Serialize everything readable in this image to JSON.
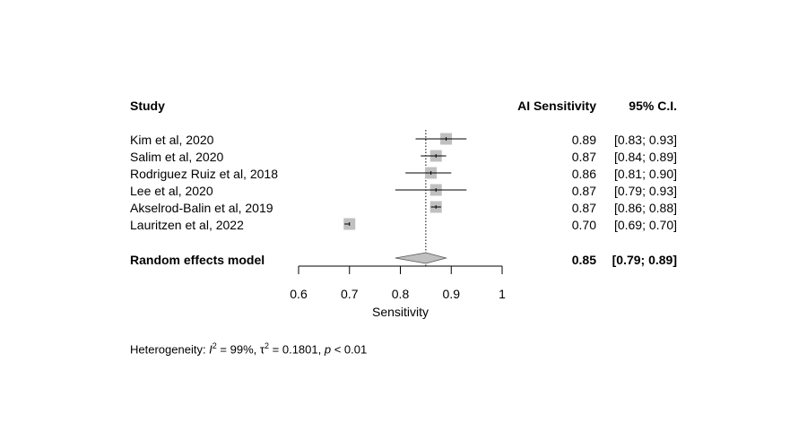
{
  "header": {
    "study_label": "Study",
    "estimate_label": "AI Sensitivity",
    "ci_label": "95% C.I."
  },
  "studies": [
    {
      "name": "Kim et al, 2020",
      "estimate_text": "0.89",
      "ci_text": "[0.83; 0.93]"
    },
    {
      "name": "Salim et al, 2020",
      "estimate_text": "0.87",
      "ci_text": "[0.84; 0.89]"
    },
    {
      "name": "Rodriguez Ruiz et al, 2018",
      "estimate_text": "0.86",
      "ci_text": "[0.81; 0.90]"
    },
    {
      "name": "Lee et al, 2020",
      "estimate_text": "0.87",
      "ci_text": "[0.79; 0.93]"
    },
    {
      "name": "Akselrod-Balin et al, 2019",
      "estimate_text": "0.87",
      "ci_text": "[0.86; 0.88]"
    },
    {
      "name": "Lauritzen et al, 2022",
      "estimate_text": "0.70",
      "ci_text": "[0.69; 0.70]"
    }
  ],
  "summary": {
    "name": "Random effects model",
    "estimate_text": "0.85",
    "ci_text": "[0.79; 0.89]"
  },
  "heterogeneity": {
    "prefix": "Heterogeneity: ",
    "i_symbol": "I",
    "i_exp": "2",
    "i_value": " = 99%, ",
    "tau_symbol": "τ",
    "tau_exp": "2",
    "tau_value": " = 0.1801, ",
    "p_symbol": "p",
    "p_value": " < 0.01"
  },
  "colors": {
    "box": "#c0c0c0",
    "diamond": "#c0c0c0",
    "line": "#000000"
  },
  "chart_data": {
    "type": "forest",
    "xlabel": "Sensitivity",
    "xlim": [
      0.6,
      1.0
    ],
    "xticks": [
      0.6,
      0.7,
      0.8,
      0.9,
      1.0
    ],
    "xtick_labels": [
      "0.6",
      "0.7",
      "0.8",
      "0.9",
      "1"
    ],
    "reference_line": 0.85,
    "studies": [
      {
        "name": "Kim et al, 2020",
        "estimate": 0.89,
        "lower": 0.83,
        "upper": 0.93
      },
      {
        "name": "Salim et al, 2020",
        "estimate": 0.87,
        "lower": 0.84,
        "upper": 0.89
      },
      {
        "name": "Rodriguez Ruiz et al, 2018",
        "estimate": 0.86,
        "lower": 0.81,
        "upper": 0.9
      },
      {
        "name": "Lee et al, 2020",
        "estimate": 0.87,
        "lower": 0.79,
        "upper": 0.93
      },
      {
        "name": "Akselrod-Balin et al, 2019",
        "estimate": 0.87,
        "lower": 0.86,
        "upper": 0.88
      },
      {
        "name": "Lauritzen et al, 2022",
        "estimate": 0.7,
        "lower": 0.69,
        "upper": 0.7
      }
    ],
    "summary": {
      "name": "Random effects model",
      "estimate": 0.85,
      "lower": 0.79,
      "upper": 0.89
    }
  }
}
